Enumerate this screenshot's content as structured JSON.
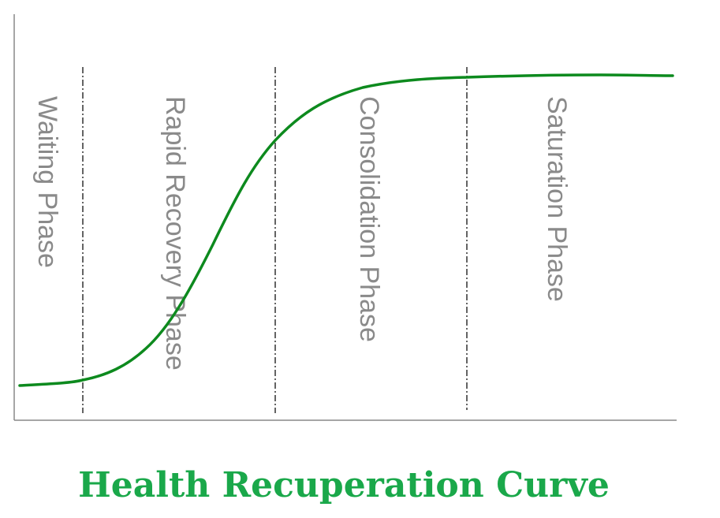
{
  "title": "Health Recuperation Curve",
  "phases": [
    "Waiting Phase",
    "Rapid Recovery Phase",
    "Consolidation Phase",
    "Saturation Phase"
  ]
}
